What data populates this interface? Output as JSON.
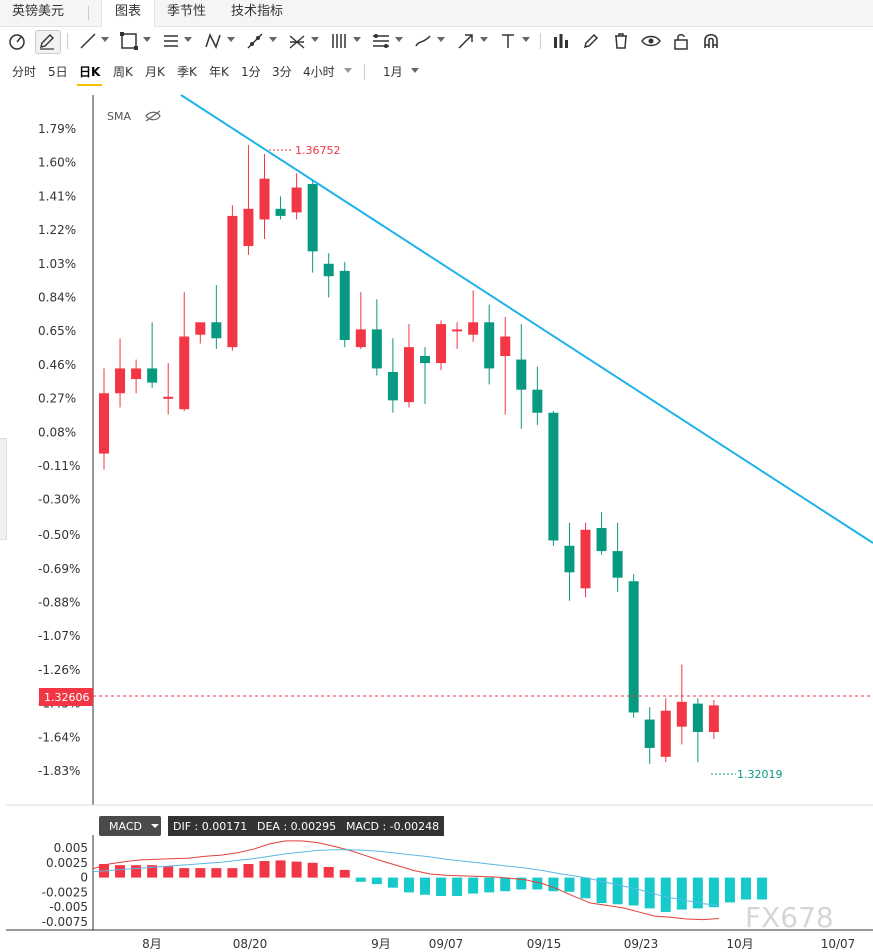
{
  "tabs": [
    {
      "label": "英镑美元"
    },
    {
      "label": "图表"
    },
    {
      "label": "季节性"
    },
    {
      "label": "技术指标"
    }
  ],
  "toolbar": {
    "icons": [
      "gauge-icon",
      "pen-edit-icon",
      "line-icon",
      "rect-icon",
      "parallel-icon",
      "pattern-icon",
      "ray-icon",
      "fork-icon",
      "fib-icon",
      "channel-icon",
      "brush-icon",
      "arrow-icon",
      "text-icon",
      "barchart-icon",
      "pencil-icon",
      "trash-icon",
      "eye-icon",
      "lock-icon",
      "magnet-icon"
    ]
  },
  "periods": {
    "items": [
      "分时",
      "5日",
      "日K",
      "周K",
      "月K",
      "季K",
      "年K",
      "1分",
      "3分",
      "4小时"
    ],
    "active": "日K",
    "range": "1月"
  },
  "sidebar_hint": "",
  "chart_data": [
    {
      "type": "candlestick",
      "indicator": "SMA",
      "price_axis_ticks": [
        "1.79%",
        "1.60%",
        "1.41%",
        "1.22%",
        "1.03%",
        "0.84%",
        "0.65%",
        "0.46%",
        "0.27%",
        "0.08%",
        "-0.11%",
        "-0.30%",
        "-0.50%",
        "-0.69%",
        "-0.88%",
        "-1.07%",
        "-1.26%",
        "-1.45%",
        "-1.64%",
        "-1.83%"
      ],
      "price_axis_values": [
        1.79,
        1.6,
        1.41,
        1.22,
        1.03,
        0.84,
        0.65,
        0.46,
        0.27,
        0.08,
        -0.11,
        -0.3,
        -0.5,
        -0.69,
        -0.88,
        -1.07,
        -1.26,
        -1.45,
        -1.64,
        -1.83
      ],
      "current_price": "1.32606",
      "high_label": "1.36752",
      "low_label": "1.32019",
      "x_axis_labels": [
        "8月",
        "08/20",
        "9月",
        "09/07",
        "09/15",
        "09/23",
        "10月",
        "10/07"
      ],
      "up_color": "#f23645",
      "down_color": "#089981",
      "trendline_color": "#1fb3ea",
      "candles_pct": [
        {
          "o": -0.04,
          "h": 0.44,
          "l": -0.13,
          "c": 0.3
        },
        {
          "o": 0.3,
          "h": 0.61,
          "l": 0.22,
          "c": 0.44
        },
        {
          "o": 0.38,
          "h": 0.49,
          "l": 0.3,
          "c": 0.44
        },
        {
          "o": 0.44,
          "h": 0.7,
          "l": 0.33,
          "c": 0.36
        },
        {
          "o": 0.28,
          "h": 0.47,
          "l": 0.18,
          "c": 0.28
        },
        {
          "o": 0.21,
          "h": 0.87,
          "l": 0.2,
          "c": 0.62
        },
        {
          "o": 0.63,
          "h": 0.7,
          "l": 0.58,
          "c": 0.7
        },
        {
          "o": 0.7,
          "h": 0.91,
          "l": 0.55,
          "c": 0.61
        },
        {
          "o": 0.56,
          "h": 1.36,
          "l": 0.54,
          "c": 1.3
        },
        {
          "o": 1.13,
          "h": 1.7,
          "l": 1.08,
          "c": 1.34
        },
        {
          "o": 1.28,
          "h": 1.65,
          "l": 1.17,
          "c": 1.51
        },
        {
          "o": 1.34,
          "h": 1.41,
          "l": 1.28,
          "c": 1.3
        },
        {
          "o": 1.32,
          "h": 1.54,
          "l": 1.28,
          "c": 1.46
        },
        {
          "o": 1.48,
          "h": 1.5,
          "l": 0.98,
          "c": 1.1
        },
        {
          "o": 1.03,
          "h": 1.09,
          "l": 0.84,
          "c": 0.96
        },
        {
          "o": 0.99,
          "h": 1.04,
          "l": 0.56,
          "c": 0.6
        },
        {
          "o": 0.56,
          "h": 0.87,
          "l": 0.55,
          "c": 0.66
        },
        {
          "o": 0.66,
          "h": 0.83,
          "l": 0.4,
          "c": 0.44
        },
        {
          "o": 0.42,
          "h": 0.61,
          "l": 0.19,
          "c": 0.26
        },
        {
          "o": 0.25,
          "h": 0.69,
          "l": 0.22,
          "c": 0.56
        },
        {
          "o": 0.51,
          "h": 0.56,
          "l": 0.24,
          "c": 0.47
        },
        {
          "o": 0.47,
          "h": 0.71,
          "l": 0.43,
          "c": 0.69
        },
        {
          "o": 0.66,
          "h": 0.7,
          "l": 0.55,
          "c": 0.66
        },
        {
          "o": 0.63,
          "h": 0.88,
          "l": 0.59,
          "c": 0.7
        },
        {
          "o": 0.7,
          "h": 0.8,
          "l": 0.35,
          "c": 0.44
        },
        {
          "o": 0.51,
          "h": 0.73,
          "l": 0.18,
          "c": 0.62
        },
        {
          "o": 0.49,
          "h": 0.69,
          "l": 0.1,
          "c": 0.32
        },
        {
          "o": 0.32,
          "h": 0.45,
          "l": 0.12,
          "c": 0.19
        },
        {
          "o": 0.19,
          "h": 0.2,
          "l": -0.56,
          "c": -0.53
        },
        {
          "o": -0.56,
          "h": -0.43,
          "l": -0.87,
          "c": -0.71
        },
        {
          "o": -0.8,
          "h": -0.43,
          "l": -0.85,
          "c": -0.47
        },
        {
          "o": -0.46,
          "h": -0.37,
          "l": -0.61,
          "c": -0.59
        },
        {
          "o": -0.59,
          "h": -0.43,
          "l": -0.82,
          "c": -0.74
        },
        {
          "o": -0.76,
          "h": -0.72,
          "l": -1.53,
          "c": -1.5
        },
        {
          "o": -1.54,
          "h": -1.47,
          "l": -1.79,
          "c": -1.7
        },
        {
          "o": -1.75,
          "h": -1.42,
          "l": -1.78,
          "c": -1.49
        },
        {
          "o": -1.58,
          "h": -1.23,
          "l": -1.68,
          "c": -1.44
        },
        {
          "o": -1.45,
          "h": -1.42,
          "l": -1.78,
          "c": -1.61
        },
        {
          "o": -1.61,
          "h": -1.43,
          "l": -1.65,
          "c": -1.46
        }
      ],
      "candle_x_offset": 104,
      "candle_step": 16.05
    },
    {
      "type": "macd",
      "title": "MACD",
      "readout": {
        "dif": "DIF : 0.00171",
        "dea": "DEA : 0.00295",
        "macd": "MACD : -0.00248"
      },
      "y_ticks": [
        "0.005",
        "0.0025",
        "0",
        "-0.0025",
        "-0.005",
        "-0.0075"
      ],
      "y_values": [
        0.005,
        0.0025,
        0,
        -0.0025,
        -0.005,
        -0.0075
      ],
      "hist": [
        0.0023,
        0.0021,
        0.0021,
        0.0021,
        0.0019,
        0.0016,
        0.0016,
        0.0016,
        0.0016,
        0.0023,
        0.0028,
        0.0029,
        0.0027,
        0.0025,
        0.0018,
        0.0013,
        -0.0007,
        -0.0011,
        -0.0017,
        -0.0025,
        -0.0029,
        -0.0031,
        -0.0031,
        -0.0027,
        -0.0025,
        -0.0023,
        -0.002,
        -0.002,
        -0.0023,
        -0.0024,
        -0.0035,
        -0.0043,
        -0.0045,
        -0.0047,
        -0.0052,
        -0.0058,
        -0.0054,
        -0.0052,
        -0.005,
        -0.0042,
        -0.0037,
        -0.0037
      ],
      "dif": [
        0.0015,
        0.0023,
        0.0027,
        0.003,
        0.0031,
        0.0032,
        0.0033,
        0.0036,
        0.0038,
        0.0042,
        0.0048,
        0.0057,
        0.0062,
        0.0062,
        0.0059,
        0.0053,
        0.0046,
        0.0037,
        0.0028,
        0.002,
        0.0012,
        0.0006,
        0.0004,
        0.0003,
        0.0002,
        0.0001,
        -0.0001,
        -0.0004,
        -0.001,
        -0.002,
        -0.0032,
        -0.0043,
        -0.0047,
        -0.0051,
        -0.0058,
        -0.0065,
        -0.0067,
        -0.007,
        -0.0071,
        -0.0069
      ],
      "dea": [
        0.001,
        0.0012,
        0.0014,
        0.0016,
        0.0018,
        0.002,
        0.0022,
        0.0024,
        0.0026,
        0.0029,
        0.0032,
        0.0036,
        0.004,
        0.0043,
        0.0046,
        0.0047,
        0.0047,
        0.0046,
        0.0044,
        0.0041,
        0.0038,
        0.0035,
        0.0031,
        0.0028,
        0.0025,
        0.0022,
        0.0019,
        0.0016,
        0.0012,
        0.0007,
        0.0003,
        -0.0002,
        -0.0008,
        -0.0014,
        -0.002,
        -0.0028,
        -0.0034,
        -0.0039,
        -0.0044,
        -0.0047
      ]
    }
  ],
  "watermark": "FX678"
}
